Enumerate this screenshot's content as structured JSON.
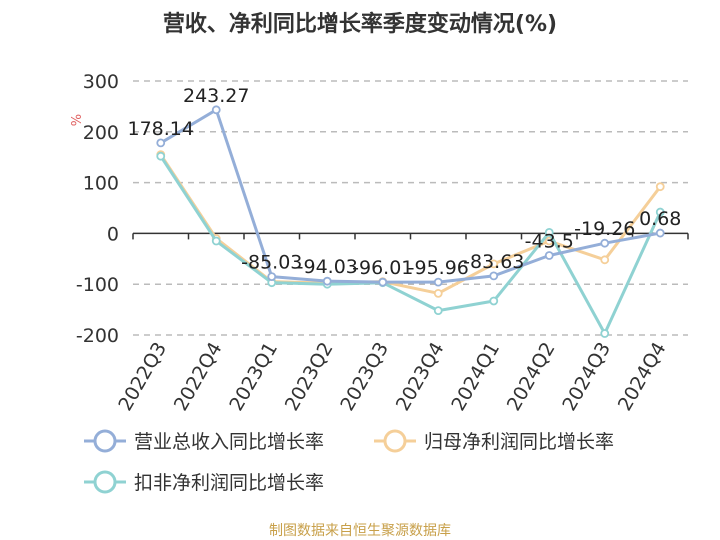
{
  "colors": {
    "revenue": "#94aed8",
    "net_profit": "#f5cf99",
    "deducted_net_profit": "#8fd2d2",
    "grid": "#bbbbbb",
    "unit": "#e06060",
    "source": "#c8a04a"
  },
  "chart_data": {
    "type": "line",
    "title": "营收、净利同比增长率季度变动情况(%)",
    "ylabel": "%",
    "ylim": [
      -200,
      300
    ],
    "yticks": [
      300,
      200,
      100,
      0,
      -100,
      -200
    ],
    "categories": [
      "2022Q3",
      "2022Q4",
      "2023Q1",
      "2023Q2",
      "2023Q3",
      "2023Q4",
      "2024Q1",
      "2024Q2",
      "2024Q3",
      "2024Q4"
    ],
    "series": [
      {
        "name": "营业总收入同比增长率",
        "key": "revenue",
        "values": [
          178.14,
          243.27,
          -85.03,
          -94.03,
          -96.01,
          -95.96,
          -83.63,
          -43.5,
          -19.26,
          0.68
        ],
        "labels": [
          "178.14",
          "243.27",
          "-85.03",
          "-94.03",
          "-96.01",
          "-95.96",
          "-83.63",
          "-43.5",
          "-19.26",
          "0.68"
        ]
      },
      {
        "name": "归母净利润同比增长率",
        "key": "net_profit",
        "values": [
          155,
          -10,
          -95,
          -98,
          -95,
          -118,
          -60,
          -15,
          -52,
          92
        ]
      },
      {
        "name": "扣非净利润同比增长率",
        "key": "deducted_net_profit",
        "values": [
          152,
          -15,
          -97,
          -100,
          -97,
          -152,
          -133,
          2,
          -197,
          42
        ]
      }
    ],
    "grid": true,
    "legend_position": "bottom"
  },
  "footer": {
    "source": "制图数据来自恒生聚源数据库"
  }
}
